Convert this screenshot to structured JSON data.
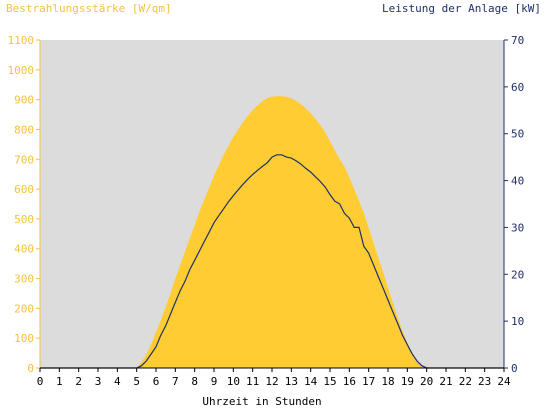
{
  "chart_data": {
    "type": "area",
    "left_title": "Bestrahlungsstärke [W/qm]",
    "right_title": "Leistung der Anlage [kW]",
    "xlabel": "Uhrzeit in Stunden",
    "xlim": [
      0,
      24
    ],
    "x_ticks": [
      "0",
      "1",
      "2",
      "3",
      "4",
      "5",
      "6",
      "7",
      "8",
      "9",
      "10",
      "11",
      "12",
      "13",
      "14",
      "15",
      "16",
      "17",
      "18",
      "19",
      "20",
      "21",
      "22",
      "23",
      "24"
    ],
    "ylim_left": [
      0,
      1100
    ],
    "y_ticks_left": [
      "0",
      "100",
      "200",
      "300",
      "400",
      "500",
      "600",
      "700",
      "800",
      "900",
      "1000",
      "1100"
    ],
    "ylim_right": [
      0,
      70
    ],
    "y_ticks_right": [
      "0",
      "10",
      "20",
      "30",
      "40",
      "50",
      "60",
      "70"
    ],
    "grid": false,
    "series": [
      {
        "axis": "left",
        "kind": "area",
        "x": [
          0,
          5,
          5.25,
          5.5,
          5.75,
          6,
          6.25,
          6.5,
          6.75,
          7,
          7.25,
          7.5,
          7.75,
          8,
          8.25,
          8.5,
          8.75,
          9,
          9.25,
          9.5,
          9.75,
          10,
          10.25,
          10.5,
          10.75,
          11,
          11.25,
          11.5,
          11.75,
          12,
          12.25,
          12.5,
          12.75,
          13,
          13.25,
          13.5,
          13.75,
          14,
          14.25,
          14.5,
          14.75,
          15,
          15.25,
          15.5,
          15.75,
          16,
          16.25,
          16.5,
          16.75,
          17,
          17.25,
          17.5,
          17.75,
          18,
          18.25,
          18.5,
          18.75,
          19,
          19.25,
          19.5,
          19.75,
          20,
          20.25,
          24
        ],
        "values": [
          0,
          0,
          20,
          45,
          80,
          120,
          160,
          205,
          250,
          300,
          345,
          390,
          435,
          480,
          525,
          565,
          605,
          645,
          680,
          715,
          745,
          775,
          800,
          825,
          845,
          865,
          880,
          895,
          905,
          910,
          912,
          912,
          910,
          905,
          895,
          885,
          870,
          855,
          835,
          815,
          790,
          760,
          730,
          700,
          675,
          640,
          600,
          560,
          520,
          470,
          420,
          370,
          320,
          270,
          220,
          170,
          125,
          85,
          50,
          25,
          10,
          4,
          0,
          0
        ]
      },
      {
        "axis": "right",
        "kind": "line",
        "color": "#1f2f6b",
        "x": [
          0,
          5,
          5.25,
          5.5,
          5.75,
          6,
          6.25,
          6.5,
          6.75,
          7,
          7.25,
          7.5,
          7.75,
          8,
          8.25,
          8.5,
          8.75,
          9,
          9.25,
          9.5,
          9.75,
          10,
          10.25,
          10.5,
          10.75,
          11,
          11.25,
          11.5,
          11.75,
          12,
          12.25,
          12.5,
          12.75,
          13,
          13.25,
          13.5,
          13.75,
          14,
          14.25,
          14.5,
          14.75,
          15,
          15.25,
          15.5,
          15.75,
          16,
          16.25,
          16.5,
          16.75,
          17,
          17.25,
          17.5,
          17.75,
          18,
          18.25,
          18.5,
          18.75,
          19,
          19.25,
          19.5,
          19.75,
          20,
          20.25,
          24
        ],
        "values": [
          0,
          0,
          0.5,
          1.5,
          3,
          4.5,
          7,
          9,
          11.5,
          14,
          16.5,
          18.5,
          21,
          23,
          25,
          27,
          29,
          31,
          32.5,
          34,
          35.5,
          36.8,
          38,
          39.2,
          40.3,
          41.3,
          42.2,
          43,
          43.8,
          45,
          45.5,
          45.5,
          45,
          44.8,
          44.2,
          43.5,
          42.6,
          41.8,
          40.8,
          39.8,
          38.6,
          37,
          35.6,
          35,
          33,
          32,
          30,
          30,
          26,
          24.5,
          22,
          19.5,
          17,
          14.5,
          12,
          9.5,
          7,
          5,
          3,
          1.5,
          0.5,
          0,
          0,
          0
        ]
      }
    ],
    "colors": {
      "plot_background": "#dcdcdc",
      "area_fill": "#ffcc33",
      "left_axis": "#f5c242",
      "right_axis": "#1f2f6b",
      "x_axis_text": "#000000"
    }
  }
}
